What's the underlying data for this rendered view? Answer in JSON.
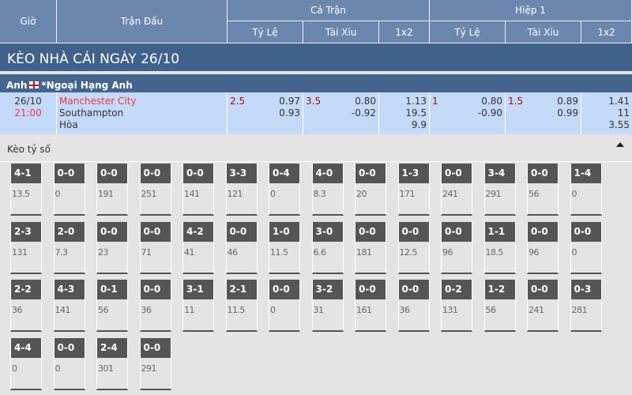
{
  "header": {
    "gio": "Giờ",
    "tran_dau": "Trận Đấu",
    "ca_tran": "Cả Trận",
    "hiep1": "Hiệp 1",
    "ty_le": "Tỷ Lệ",
    "tai_xiu": "Tài Xỉu",
    "x12": "1x2"
  },
  "title": "KÈO NHÀ CÁI NGÀY 26/10",
  "league": {
    "country": "Anh",
    "name": "*Ngoại Hạng Anh"
  },
  "match": {
    "date": "26/10",
    "time": "21:00",
    "home": "Manchester City",
    "away": "Southampton",
    "draw": "Hòa",
    "ft_handicap": "2.5",
    "ft_handicap_home": "0.97",
    "ft_handicap_away": "0.93",
    "ft_ou": "3.5",
    "ft_ou_over": "0.80",
    "ft_ou_under": "-0.92",
    "ft_1x2": [
      "1.13",
      "19.5",
      "9.9"
    ],
    "h1_handicap": "1",
    "h1_handicap_home": "0.80",
    "h1_handicap_away": "-0.90",
    "h1_ou": "1.5",
    "h1_ou_over": "0.89",
    "h1_ou_under": "0.99",
    "h1_1x2": [
      "1.41",
      "11",
      "3.55"
    ]
  },
  "score_section": {
    "label": "Kèo tỷ số",
    "collapse_icon": "triangle-up-icon"
  },
  "scores": [
    {
      "s": "4-1",
      "o": "13.5"
    },
    {
      "s": "0-0",
      "o": "0"
    },
    {
      "s": "0-0",
      "o": "191"
    },
    {
      "s": "0-0",
      "o": "251"
    },
    {
      "s": "0-0",
      "o": "141"
    },
    {
      "s": "3-3",
      "o": "121"
    },
    {
      "s": "0-4",
      "o": "0"
    },
    {
      "s": "4-0",
      "o": "8.3"
    },
    {
      "s": "0-0",
      "o": "20"
    },
    {
      "s": "1-3",
      "o": "171"
    },
    {
      "s": "0-0",
      "o": "241"
    },
    {
      "s": "3-4",
      "o": "291"
    },
    {
      "s": "0-0",
      "o": "56"
    },
    {
      "s": "1-4",
      "o": "0"
    },
    {
      "s": "2-3",
      "o": "131"
    },
    {
      "s": "2-0",
      "o": "7.3"
    },
    {
      "s": "0-0",
      "o": "23"
    },
    {
      "s": "0-0",
      "o": "71"
    },
    {
      "s": "4-2",
      "o": "41"
    },
    {
      "s": "0-0",
      "o": "46"
    },
    {
      "s": "1-0",
      "o": "11.5"
    },
    {
      "s": "3-0",
      "o": "6.6"
    },
    {
      "s": "0-0",
      "o": "181"
    },
    {
      "s": "0-0",
      "o": "12.5"
    },
    {
      "s": "0-0",
      "o": "96"
    },
    {
      "s": "1-1",
      "o": "18.5"
    },
    {
      "s": "0-0",
      "o": "96"
    },
    {
      "s": "0-0",
      "o": "0"
    },
    {
      "s": "2-2",
      "o": "36"
    },
    {
      "s": "4-3",
      "o": "141"
    },
    {
      "s": "0-1",
      "o": "56"
    },
    {
      "s": "0-0",
      "o": "36"
    },
    {
      "s": "3-1",
      "o": "11"
    },
    {
      "s": "2-1",
      "o": "11.5"
    },
    {
      "s": "0-0",
      "o": "0"
    },
    {
      "s": "3-2",
      "o": "31"
    },
    {
      "s": "0-0",
      "o": "161"
    },
    {
      "s": "0-0",
      "o": "36"
    },
    {
      "s": "0-2",
      "o": "131"
    },
    {
      "s": "1-2",
      "o": "56"
    },
    {
      "s": "0-0",
      "o": "241"
    },
    {
      "s": "0-3",
      "o": "281"
    },
    {
      "s": "4-4",
      "o": "0"
    },
    {
      "s": "0-0",
      "o": "0"
    },
    {
      "s": "2-4",
      "o": "301"
    },
    {
      "s": "0-0",
      "o": "291"
    }
  ]
}
